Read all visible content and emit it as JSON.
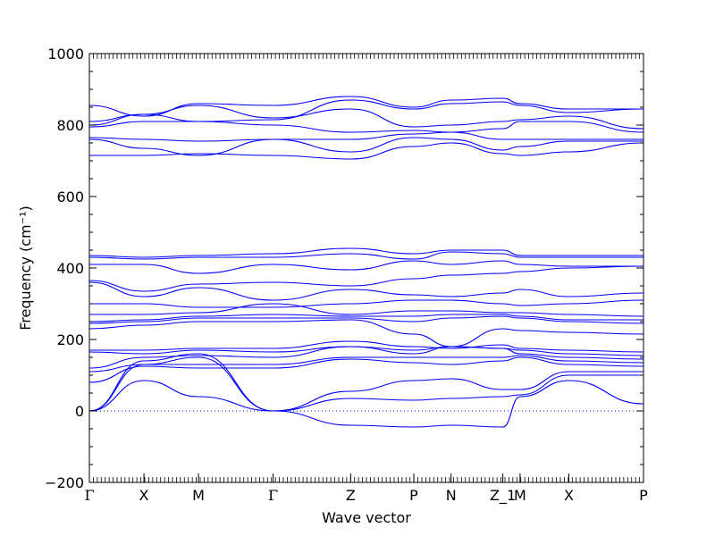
{
  "chart_data": {
    "type": "line",
    "xlabel": "Wave vector",
    "ylabel": "Frequency (cm⁻¹)",
    "ylim": [
      -200,
      1000
    ],
    "yticks": [
      -200,
      0,
      200,
      400,
      600,
      800,
      1000
    ],
    "ytick_labels": [
      "−200",
      "0",
      "200",
      "400",
      "600",
      "800",
      "1000"
    ],
    "xlim": [
      0,
      9.65
    ],
    "high_symmetry_points": [
      {
        "label": "Γ",
        "x": 0.0
      },
      {
        "label": "X",
        "x": 0.95
      },
      {
        "label": "M",
        "x": 1.9
      },
      {
        "label": "Γ",
        "x": 3.2
      },
      {
        "label": "Z",
        "x": 4.55
      },
      {
        "label": "P",
        "x": 5.65
      },
      {
        "label": "N",
        "x": 6.3
      },
      {
        "label": "Z_1",
        "x": 7.2
      },
      {
        "label": "M",
        "x": 7.5
      },
      {
        "label": "X",
        "x": 8.35
      },
      {
        "label": "P",
        "x": 9.65
      }
    ],
    "zero_line": {
      "y": 0,
      "style": "dotted"
    },
    "line_color": "#0000ff",
    "series": [
      {
        "x": [
          0,
          0.95,
          1.9,
          3.2,
          4.55,
          5.65,
          6.3,
          7.2,
          7.5,
          8.35,
          9.65
        ],
        "y": [
          0,
          85,
          40,
          0,
          -40,
          -45,
          -40,
          -45,
          40,
          85,
          20
        ]
      },
      {
        "x": [
          0,
          0.95,
          1.9,
          3.2,
          4.55,
          5.65,
          6.3,
          7.2,
          7.5,
          8.35,
          9.65
        ],
        "y": [
          0,
          130,
          150,
          0,
          35,
          30,
          35,
          40,
          45,
          100,
          100
        ]
      },
      {
        "x": [
          0,
          0.95,
          1.9,
          3.2,
          4.55,
          5.65,
          6.3,
          7.2,
          7.5,
          8.35,
          9.65
        ],
        "y": [
          0,
          140,
          160,
          0,
          55,
          85,
          90,
          60,
          60,
          110,
          110
        ]
      },
      {
        "x": [
          0,
          0.95,
          1.9,
          3.2,
          4.55,
          5.65,
          6.3,
          7.2,
          7.5,
          8.35,
          9.65
        ],
        "y": [
          80,
          125,
          120,
          120,
          145,
          135,
          130,
          140,
          150,
          130,
          125
        ]
      },
      {
        "x": [
          0,
          0.95,
          1.9,
          3.2,
          4.55,
          5.65,
          6.3,
          7.2,
          7.5,
          8.35,
          9.65
        ],
        "y": [
          110,
          130,
          130,
          130,
          150,
          150,
          150,
          150,
          155,
          140,
          135
        ]
      },
      {
        "x": [
          0,
          0.95,
          1.9,
          3.2,
          4.55,
          5.65,
          6.3,
          7.2,
          7.5,
          8.35,
          9.65
        ],
        "y": [
          120,
          150,
          155,
          150,
          180,
          160,
          180,
          175,
          160,
          150,
          145
        ]
      },
      {
        "x": [
          0,
          0.95,
          1.9,
          3.2,
          4.55,
          5.65,
          6.3,
          7.2,
          7.5,
          8.35,
          9.65
        ],
        "y": [
          165,
          160,
          170,
          165,
          180,
          170,
          180,
          175,
          170,
          160,
          155
        ]
      },
      {
        "x": [
          0,
          0.95,
          1.9,
          3.2,
          4.55,
          5.65,
          6.3,
          7.2,
          7.5,
          8.35,
          9.65
        ],
        "y": [
          170,
          170,
          175,
          175,
          195,
          180,
          175,
          185,
          175,
          170,
          165
        ]
      },
      {
        "x": [
          0,
          0.95,
          1.9,
          3.2,
          4.55,
          5.65,
          6.3,
          7.2,
          7.5,
          8.35,
          9.65
        ],
        "y": [
          230,
          240,
          250,
          250,
          255,
          215,
          180,
          230,
          225,
          220,
          215
        ]
      },
      {
        "x": [
          0,
          0.95,
          1.9,
          3.2,
          4.55,
          5.65,
          6.3,
          7.2,
          7.5,
          8.35,
          9.65
        ],
        "y": [
          245,
          250,
          260,
          260,
          260,
          250,
          260,
          265,
          260,
          250,
          245
        ]
      },
      {
        "x": [
          0,
          0.95,
          1.9,
          3.2,
          4.55,
          5.65,
          6.3,
          7.2,
          7.5,
          8.35,
          9.65
        ],
        "y": [
          250,
          255,
          265,
          270,
          265,
          265,
          270,
          270,
          265,
          255,
          255
        ]
      },
      {
        "x": [
          0,
          0.95,
          1.9,
          3.2,
          4.55,
          5.65,
          6.3,
          7.2,
          7.5,
          8.35,
          9.65
        ],
        "y": [
          270,
          270,
          275,
          300,
          270,
          280,
          280,
          275,
          275,
          270,
          265
        ]
      },
      {
        "x": [
          0,
          0.95,
          1.9,
          3.2,
          4.55,
          5.65,
          6.3,
          7.2,
          7.5,
          8.35,
          9.65
        ],
        "y": [
          300,
          300,
          290,
          290,
          300,
          310,
          310,
          300,
          295,
          300,
          310
        ]
      },
      {
        "x": [
          0,
          0.95,
          1.9,
          3.2,
          4.55,
          5.65,
          6.3,
          7.2,
          7.5,
          8.35,
          9.65
        ],
        "y": [
          360,
          320,
          345,
          310,
          340,
          325,
          320,
          330,
          340,
          320,
          330
        ]
      },
      {
        "x": [
          0,
          0.95,
          1.9,
          3.2,
          4.55,
          5.65,
          6.3,
          7.2,
          7.5,
          8.35,
          9.65
        ],
        "y": [
          365,
          335,
          355,
          360,
          350,
          370,
          380,
          385,
          390,
          400,
          405
        ]
      },
      {
        "x": [
          0,
          0.95,
          1.9,
          3.2,
          4.55,
          5.65,
          6.3,
          7.2,
          7.5,
          8.35,
          9.65
        ],
        "y": [
          410,
          410,
          385,
          410,
          395,
          420,
          410,
          420,
          410,
          405,
          405
        ]
      },
      {
        "x": [
          0,
          0.95,
          1.9,
          3.2,
          4.55,
          5.65,
          6.3,
          7.2,
          7.5,
          8.35,
          9.65
        ],
        "y": [
          430,
          425,
          430,
          430,
          440,
          425,
          445,
          440,
          430,
          430,
          430
        ]
      },
      {
        "x": [
          0,
          0.95,
          1.9,
          3.2,
          4.55,
          5.65,
          6.3,
          7.2,
          7.5,
          8.35,
          9.65
        ],
        "y": [
          435,
          430,
          435,
          440,
          455,
          440,
          450,
          450,
          435,
          435,
          435
        ]
      },
      {
        "x": [
          0,
          0.95,
          1.9,
          3.2,
          4.55,
          5.65,
          6.3,
          7.2,
          7.5,
          8.35,
          9.65
        ],
        "y": [
          715,
          715,
          720,
          715,
          705,
          740,
          750,
          720,
          715,
          725,
          750
        ]
      },
      {
        "x": [
          0,
          0.95,
          1.9,
          3.2,
          4.55,
          5.65,
          6.3,
          7.2,
          7.5,
          8.35,
          9.65
        ],
        "y": [
          760,
          735,
          715,
          760,
          725,
          765,
          760,
          730,
          740,
          755,
          755
        ]
      },
      {
        "x": [
          0,
          0.95,
          1.9,
          3.2,
          4.55,
          5.65,
          6.3,
          7.2,
          7.5,
          8.35,
          9.65
        ],
        "y": [
          765,
          760,
          755,
          760,
          760,
          775,
          780,
          760,
          760,
          760,
          760
        ]
      },
      {
        "x": [
          0,
          0.95,
          1.9,
          3.2,
          4.55,
          5.65,
          6.3,
          7.2,
          7.5,
          8.35,
          9.65
        ],
        "y": [
          795,
          810,
          810,
          800,
          780,
          785,
          780,
          790,
          810,
          810,
          780
        ]
      },
      {
        "x": [
          0,
          0.95,
          1.9,
          3.2,
          4.55,
          5.65,
          6.3,
          7.2,
          7.5,
          8.35,
          9.65
        ],
        "y": [
          800,
          830,
          855,
          820,
          845,
          795,
          800,
          810,
          815,
          825,
          790
        ]
      },
      {
        "x": [
          0,
          0.95,
          1.9,
          3.2,
          4.55,
          5.65,
          6.3,
          7.2,
          7.5,
          8.35,
          9.65
        ],
        "y": [
          810,
          830,
          810,
          815,
          870,
          845,
          860,
          865,
          855,
          835,
          845
        ]
      },
      {
        "x": [
          0,
          0.95,
          1.9,
          3.2,
          4.55,
          5.65,
          6.3,
          7.2,
          7.5,
          8.35,
          9.65
        ],
        "y": [
          855,
          825,
          860,
          855,
          880,
          850,
          870,
          875,
          860,
          845,
          845
        ]
      }
    ]
  }
}
